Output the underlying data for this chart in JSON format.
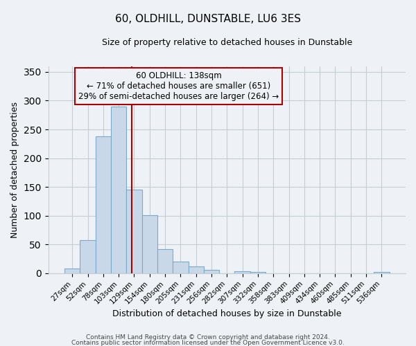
{
  "title": "60, OLDHILL, DUNSTABLE, LU6 3ES",
  "subtitle": "Size of property relative to detached houses in Dunstable",
  "xlabel": "Distribution of detached houses by size in Dunstable",
  "ylabel": "Number of detached properties",
  "bar_labels": [
    "27sqm",
    "52sqm",
    "78sqm",
    "103sqm",
    "129sqm",
    "154sqm",
    "180sqm",
    "205sqm",
    "231sqm",
    "256sqm",
    "282sqm",
    "307sqm",
    "332sqm",
    "358sqm",
    "383sqm",
    "409sqm",
    "434sqm",
    "460sqm",
    "485sqm",
    "511sqm",
    "536sqm"
  ],
  "bar_values": [
    8,
    57,
    238,
    290,
    145,
    101,
    42,
    20,
    12,
    6,
    0,
    3,
    2,
    0,
    0,
    0,
    0,
    0,
    0,
    0,
    2
  ],
  "bar_color": "#c8d8e8",
  "bar_edgecolor": "#7aaac8",
  "ylim": [
    0,
    360
  ],
  "yticks": [
    0,
    50,
    100,
    150,
    200,
    250,
    300,
    350
  ],
  "marker_label": "60 OLDHILL: 138sqm",
  "annotation_line1": "← 71% of detached houses are smaller (651)",
  "annotation_line2": "29% of semi-detached houses are larger (264) →",
  "vline_color": "#aa0000",
  "box_edgecolor": "#aa0000",
  "footer_line1": "Contains HM Land Registry data © Crown copyright and database right 2024.",
  "footer_line2": "Contains public sector information licensed under the Open Government Licence v3.0.",
  "background_color": "#eef2f6",
  "plot_background": "#eef2f6",
  "grid_color": "#c5cdd5",
  "title_fontsize": 11,
  "subtitle_fontsize": 9,
  "axis_label_fontsize": 9,
  "tick_fontsize": 7.5,
  "annotation_fontsize": 8.5,
  "footer_fontsize": 6.5
}
